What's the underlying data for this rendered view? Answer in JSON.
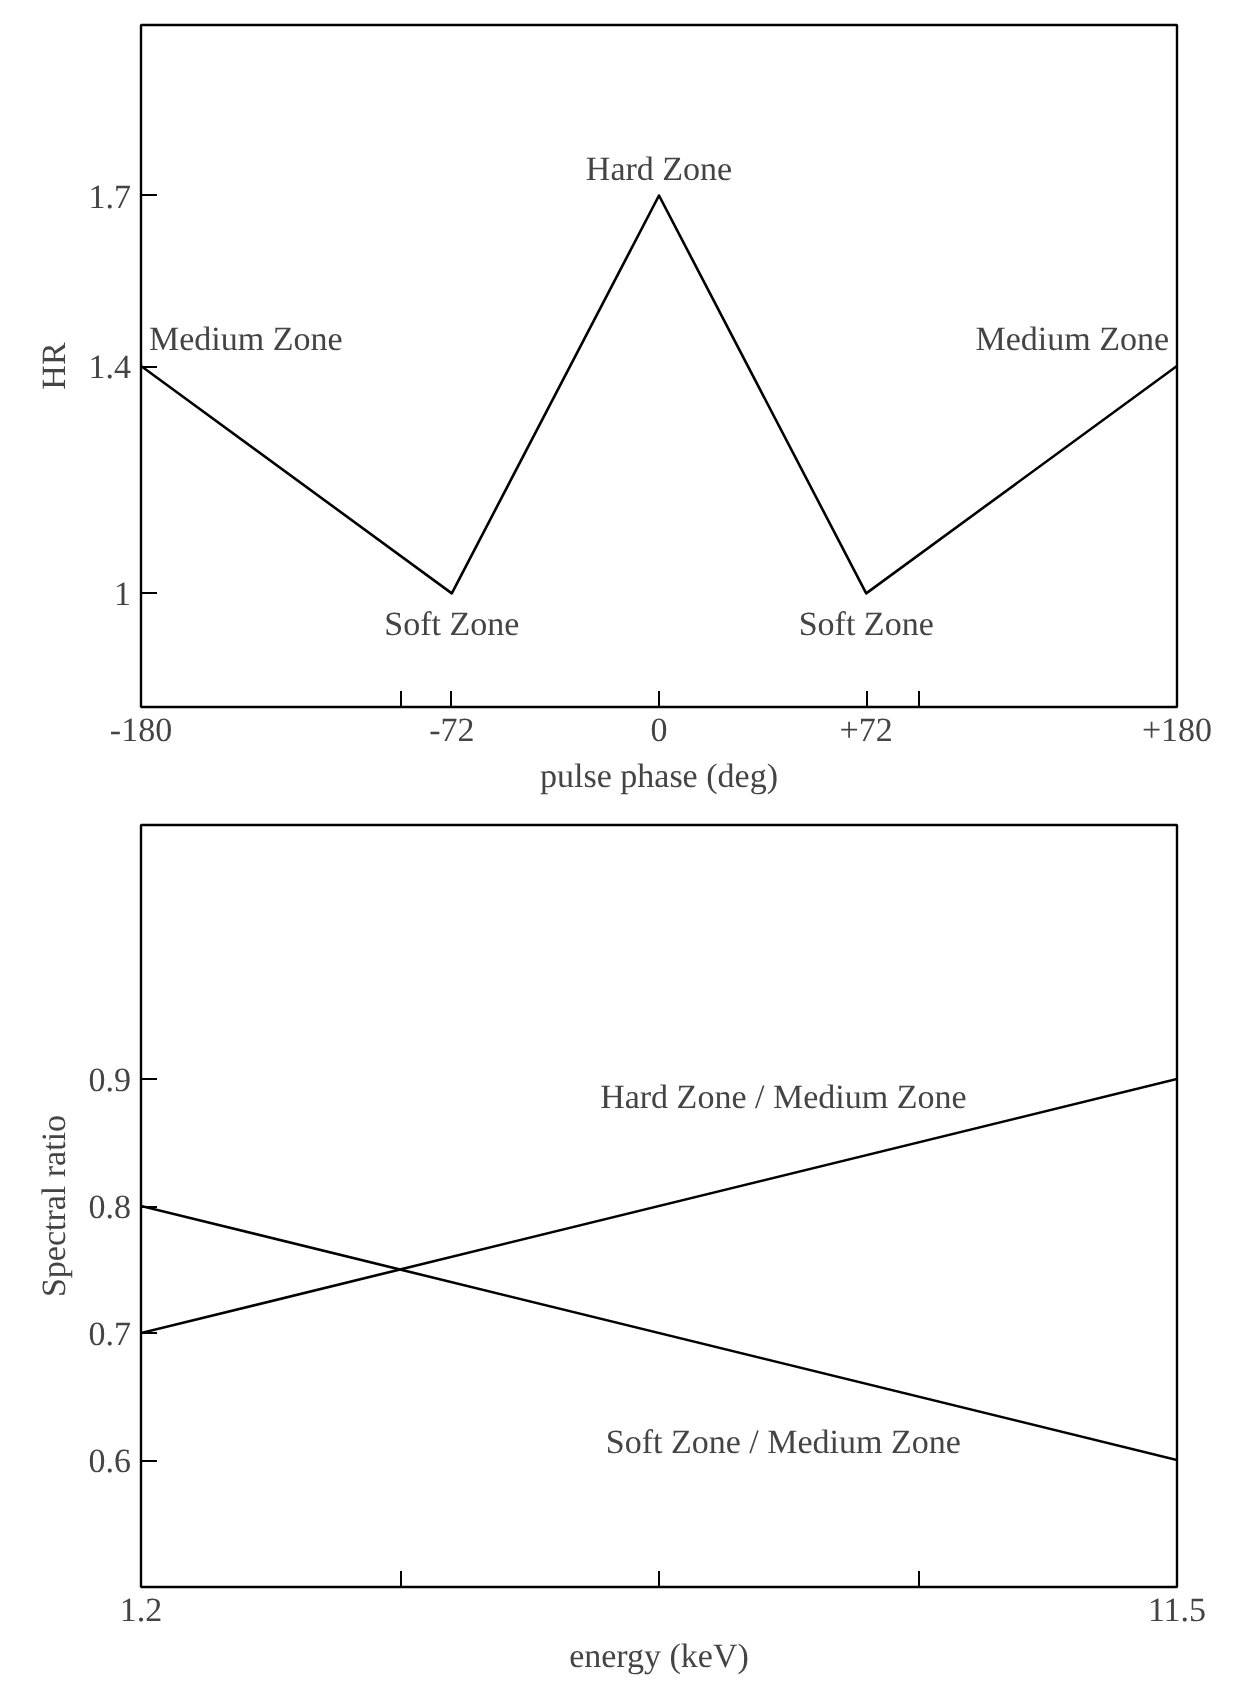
{
  "chart_data": [
    {
      "type": "line",
      "xlabel": "pulse phase (deg)",
      "ylabel": "HR",
      "x": [
        -180,
        -72,
        0,
        72,
        180
      ],
      "series": [
        {
          "color": "#000000",
          "values": [
            1.4,
            1.0,
            1.7,
            1.0,
            1.4
          ]
        }
      ],
      "xlim": [
        -180,
        180
      ],
      "ylim": [
        0.8,
        2.0
      ],
      "xticks": [
        {
          "value": -180,
          "label": "-180"
        },
        {
          "value": -90,
          "label": null
        },
        {
          "value": -72,
          "label": "-72"
        },
        {
          "value": 0,
          "label": "0"
        },
        {
          "value": 72,
          "label": "+72"
        },
        {
          "value": 90,
          "label": null
        },
        {
          "value": 180,
          "label": "+180"
        }
      ],
      "yticks": [
        1,
        1.4,
        1.7
      ],
      "grid": false,
      "legend": false,
      "annotations": [
        {
          "text": "Medium Zone",
          "x": -180,
          "y": 1.4
        },
        {
          "text": "Soft Zone",
          "x": -72,
          "y": 1.0
        },
        {
          "text": "Hard Zone",
          "x": 0,
          "y": 1.7
        },
        {
          "text": "Soft Zone",
          "x": 72,
          "y": 1.0
        },
        {
          "text": "Medium Zone",
          "x": 180,
          "y": 1.4
        }
      ]
    },
    {
      "type": "line",
      "xlabel": "energy (keV)",
      "ylabel": "Spectral ratio",
      "x": [
        1.2,
        11.5
      ],
      "series": [
        {
          "name": "Hard Zone / Medium Zone",
          "color": "#000000",
          "values": [
            0.7,
            0.9
          ]
        },
        {
          "name": "Soft Zone / Medium Zone",
          "color": "#000000",
          "values": [
            0.8,
            0.6
          ]
        }
      ],
      "xlim": [
        1.2,
        11.5
      ],
      "ylim": [
        0.5,
        1.1
      ],
      "xticks": [
        1.2,
        {
          "value": 3.775,
          "label": null
        },
        {
          "value": 6.35,
          "label": null
        },
        {
          "value": 8.925,
          "label": null
        },
        11.5
      ],
      "yticks": [
        0.6,
        0.7,
        0.8,
        0.9
      ],
      "grid": false,
      "legend": false
    }
  ]
}
